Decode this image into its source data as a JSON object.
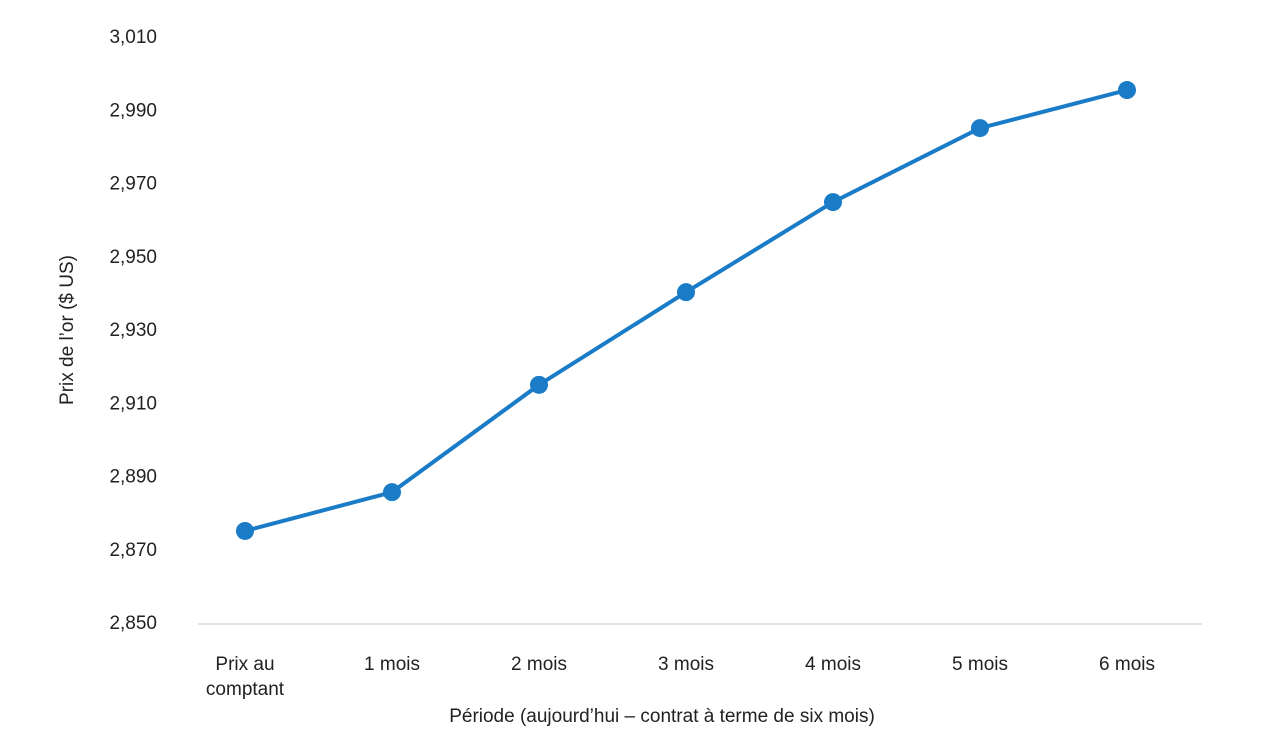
{
  "chart_data": {
    "type": "line",
    "x_label": "Période (aujourd’hui – contrat à terme de six mois)",
    "y_label": "Prix de l’or ($ US)",
    "categories": [
      "Prix au comptant",
      "1 mois",
      "2 mois",
      "3 mois",
      "4 mois",
      "5 mois",
      "6 mois"
    ],
    "series": [
      {
        "name": "Prix de l’or",
        "color": "#1a7bc7",
        "values": [
          2875.4,
          2886,
          2915.3,
          2940.6,
          2965.2,
          2985.4,
          2995.8
        ]
      }
    ],
    "ylim": [
      2850,
      3010
    ],
    "yticks": [
      {
        "value": 2850,
        "label": "2,850"
      },
      {
        "value": 2870,
        "label": "2,870"
      },
      {
        "value": 2890,
        "label": "2,890"
      },
      {
        "value": 2910,
        "label": "2,910"
      },
      {
        "value": 2930,
        "label": "2,930"
      },
      {
        "value": 2950,
        "label": "2,950"
      },
      {
        "value": 2970,
        "label": "2,970"
      },
      {
        "value": 2990,
        "label": "2,990"
      },
      {
        "value": 3010,
        "label": "3,010"
      }
    ],
    "grid": false
  }
}
